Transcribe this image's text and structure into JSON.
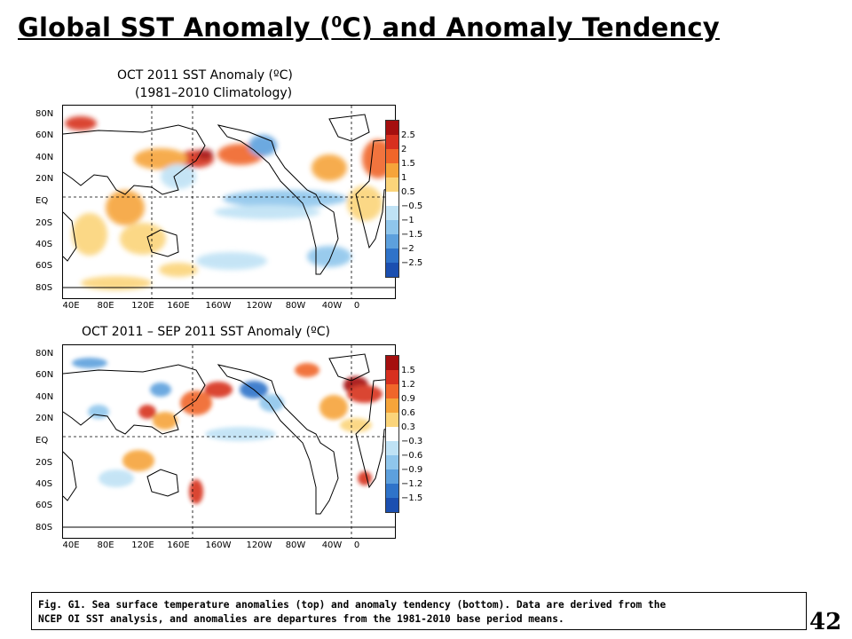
{
  "slide": {
    "title_main": "Global SST Anomaly (",
    "title_sup": "0",
    "title_rest": "C) and Anomaly Tendency",
    "page_number": "42"
  },
  "caption": {
    "line1": "Fig. G1. Sea surface temperature anomalies (top) and anomaly tendency (bottom). Data are derived from the",
    "line2": "NCEP OI SST analysis, and anomalies are departures from the 1981-2010  base period means."
  },
  "maps": [
    {
      "title_line1": "OCT 2011 SST Anomaly (ºC)",
      "title_line2": "(1981–2010 Climatology)",
      "lat_labels": [
        "80N",
        "60N",
        "40N",
        "20N",
        "EQ",
        "20S",
        "40S",
        "60S",
        "80S"
      ],
      "lon_labels": [
        "40E",
        "80E",
        "120E",
        "160E",
        "160W",
        "120W",
        "80W",
        "40W",
        "0"
      ],
      "colorbar_labels": [
        "2.5",
        "2",
        "1.5",
        "1",
        "0.5",
        "−0.5",
        "−1",
        "−1.5",
        "−2",
        "−2.5"
      ],
      "colorbar_colors": [
        "#a50f0f",
        "#d7301f",
        "#f0662a",
        "#f6a43a",
        "#fbd47a",
        "#ffffff",
        "#bfe2f5",
        "#8fc6ec",
        "#5da0dd",
        "#2f73c9",
        "#1b4fb0"
      ]
    },
    {
      "title_line1": "OCT 2011 – SEP 2011 SST Anomaly (ºC)",
      "title_line2": "",
      "lat_labels": [
        "80N",
        "60N",
        "40N",
        "20N",
        "EQ",
        "20S",
        "40S",
        "60S",
        "80S"
      ],
      "lon_labels": [
        "40E",
        "80E",
        "120E",
        "160E",
        "160W",
        "120W",
        "80W",
        "40W",
        "0"
      ],
      "colorbar_labels": [
        "1.5",
        "1.2",
        "0.9",
        "0.6",
        "0.3",
        "−0.3",
        "−0.6",
        "−0.9",
        "−1.2",
        "−1.5"
      ],
      "colorbar_colors": [
        "#a50f0f",
        "#d7301f",
        "#f0662a",
        "#f6a43a",
        "#fbd47a",
        "#ffffff",
        "#bfe2f5",
        "#8fc6ec",
        "#5da0dd",
        "#2f73c9",
        "#1b4fb0"
      ]
    }
  ]
}
